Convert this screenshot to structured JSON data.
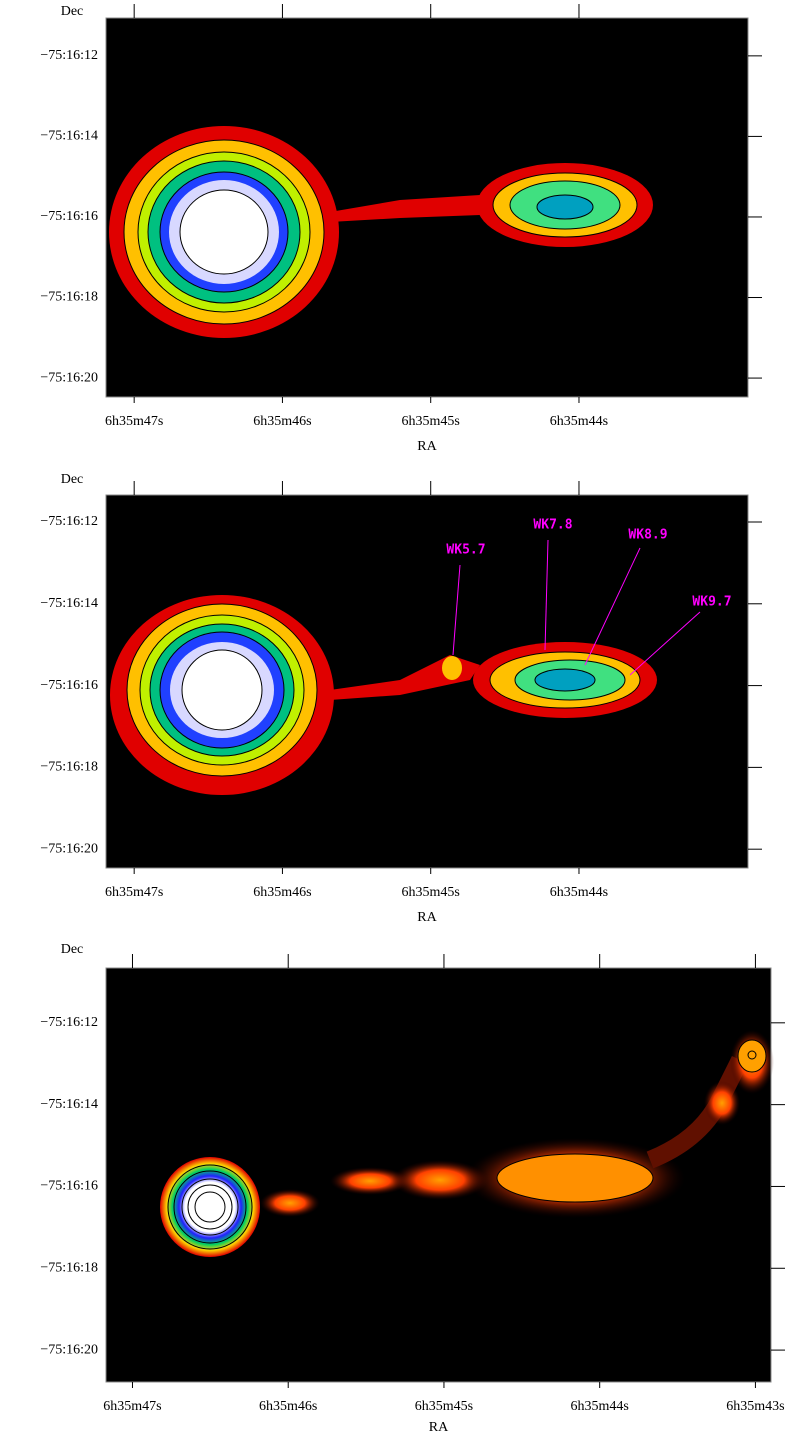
{
  "chart_data": [
    {
      "type": "image",
      "x_label": "RA",
      "y_label": "Dec",
      "xlim": [
        47.19,
        42.86
      ],
      "ylim": [
        20.47,
        11.06
      ],
      "xticks": [
        {
          "value": 47,
          "label": "6h35m47s"
        },
        {
          "value": 46,
          "label": "6h35m46s"
        },
        {
          "value": 45,
          "label": "6h35m45s"
        },
        {
          "value": 44,
          "label": "6h35m44s"
        }
      ],
      "yticks": [
        {
          "value": 12,
          "label": "−75:16:12"
        },
        {
          "value": 14,
          "label": "−75:16:14"
        },
        {
          "value": 16,
          "label": "−75:16:16"
        },
        {
          "value": 18,
          "label": "−75:16:18"
        },
        {
          "value": 20,
          "label": "−75:16:20"
        }
      ]
    },
    {
      "type": "image",
      "x_label": "RA",
      "y_label": "Dec",
      "xlim": [
        47.19,
        42.86
      ],
      "ylim": [
        20.46,
        11.34
      ],
      "xticks": [
        {
          "value": 47,
          "label": "6h35m47s"
        },
        {
          "value": 46,
          "label": "6h35m46s"
        },
        {
          "value": 45,
          "label": "6h35m45s"
        },
        {
          "value": 44,
          "label": "6h35m44s"
        }
      ],
      "yticks": [
        {
          "value": 12,
          "label": "−75:16:12"
        },
        {
          "value": 14,
          "label": "−75:16:14"
        },
        {
          "value": 16,
          "label": "−75:16:16"
        },
        {
          "value": 18,
          "label": "−75:16:18"
        },
        {
          "value": 20,
          "label": "−75:16:20"
        }
      ],
      "annotations": [
        "WK5.7",
        "WK7.8",
        "WK8.9",
        "WK9.7"
      ],
      "annotation_color": "#ff00ff"
    },
    {
      "type": "image",
      "x_label": "RA",
      "y_label": "Dec",
      "xlim": [
        47.17,
        42.9
      ],
      "ylim": [
        20.78,
        10.66
      ],
      "xticks": [
        {
          "value": 47,
          "label": "6h35m47s"
        },
        {
          "value": 46,
          "label": "6h35m46s"
        },
        {
          "value": 45,
          "label": "6h35m45s"
        },
        {
          "value": 44,
          "label": "6h35m44s"
        },
        {
          "value": 43,
          "label": "6h35m43s"
        }
      ],
      "yticks": [
        {
          "value": 12,
          "label": "−75:16:12"
        },
        {
          "value": 14,
          "label": "−75:16:14"
        },
        {
          "value": 16,
          "label": "−75:16:16"
        },
        {
          "value": 18,
          "label": "−75:16:18"
        },
        {
          "value": 20,
          "label": "−75:16:20"
        }
      ]
    }
  ]
}
